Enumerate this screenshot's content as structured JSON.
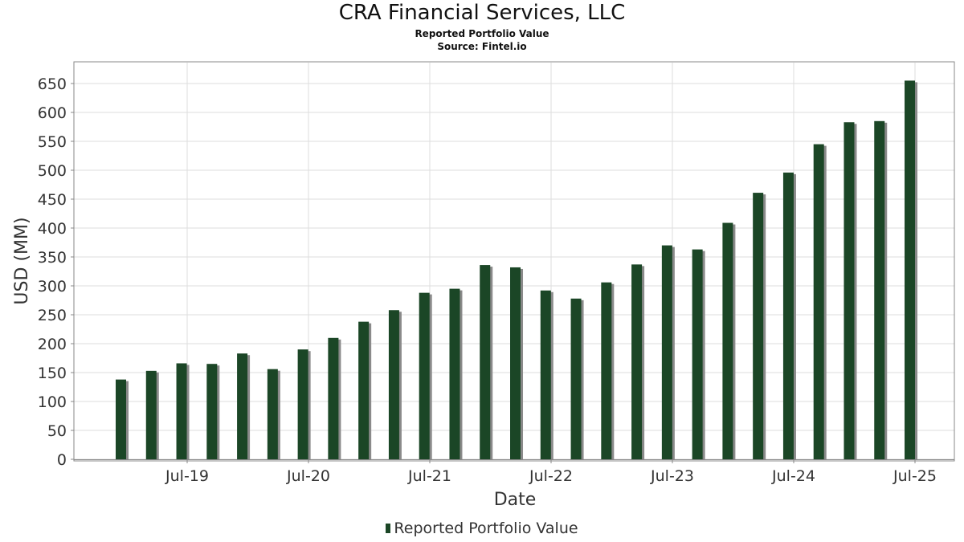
{
  "chart_data": {
    "type": "bar",
    "title": "CRA Financial Services, LLC",
    "subtitle": "Reported Portfolio Value",
    "source": "Source: Fintel.io",
    "xlabel": "Date",
    "ylabel": "USD (MM)",
    "ylim": [
      0,
      670
    ],
    "yticks": [
      0,
      50,
      100,
      150,
      200,
      250,
      300,
      350,
      400,
      450,
      500,
      550,
      600,
      650
    ],
    "xticks": [
      "Jul-19",
      "Jul-20",
      "Jul-21",
      "Jul-22",
      "Jul-23",
      "Jul-24",
      "Jul-25"
    ],
    "grid": true,
    "legend_position": "bottom",
    "series": [
      {
        "name": "Reported Portfolio Value",
        "color": "#1b4626",
        "values": [
          138,
          153,
          166,
          165,
          183,
          156,
          190,
          210,
          238,
          258,
          288,
          295,
          336,
          332,
          292,
          278,
          306,
          337,
          370,
          363,
          409,
          461,
          496,
          545,
          583,
          585,
          655
        ]
      }
    ]
  }
}
